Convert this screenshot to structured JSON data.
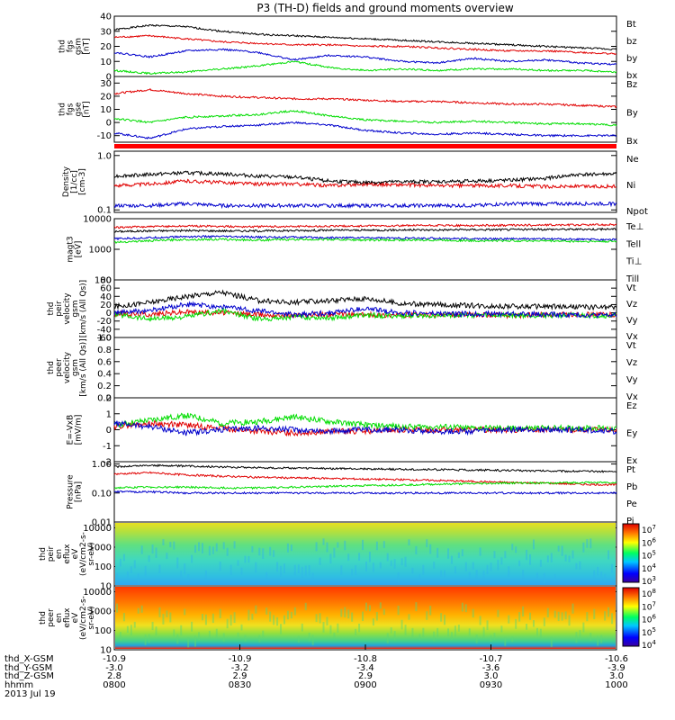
{
  "title": "P3 (TH-D) fields and ground moments overview",
  "colors": {
    "black": "#000000",
    "red": "#e00000",
    "green": "#00dd00",
    "blue": "#0000cc"
  },
  "chart_data": [
    {
      "type": "line",
      "panel": "fgs_gse",
      "ylabel": [
        "thd",
        "fgs",
        "gsm",
        "[nT]"
      ],
      "yticks": [
        "10",
        "20",
        "30",
        "40",
        "0"
      ],
      "ylim": [
        0,
        40
      ],
      "series": [
        {
          "name": "Bt",
          "color": "black",
          "values": [
            31,
            34,
            33,
            30,
            28,
            27,
            26,
            25,
            24,
            23,
            22,
            21,
            20,
            19,
            18
          ]
        },
        {
          "name": "bz",
          "color": "red",
          "values": [
            26,
            27,
            25,
            23,
            22,
            21,
            21,
            20,
            20,
            19,
            18,
            17,
            17,
            16,
            15
          ]
        },
        {
          "name": "by",
          "color": "green",
          "values": [
            4,
            2,
            3,
            5,
            7,
            10,
            6,
            4,
            5,
            4,
            5,
            5,
            4,
            4,
            3
          ]
        },
        {
          "name": "bx",
          "color": "blue",
          "values": [
            16,
            13,
            17,
            18,
            16,
            11,
            14,
            13,
            10,
            9,
            12,
            10,
            11,
            9,
            8
          ]
        }
      ]
    },
    {
      "type": "line",
      "panel": "fgs_gse2",
      "ylabel": [
        "thd",
        "fgs",
        "gse",
        "[nT]"
      ],
      "yticks": [
        "30",
        "20",
        "10",
        "0",
        "-10"
      ],
      "ylim": [
        -15,
        35
      ],
      "series": [
        {
          "name": "Bz",
          "color": "red",
          "values": [
            22,
            25,
            22,
            20,
            19,
            18,
            18,
            17,
            16,
            16,
            15,
            14,
            14,
            13,
            12
          ]
        },
        {
          "name": "By",
          "color": "green",
          "values": [
            3,
            0,
            4,
            5,
            6,
            9,
            5,
            2,
            1,
            0,
            1,
            0,
            -1,
            -1,
            -2
          ]
        },
        {
          "name": "Bx",
          "color": "blue",
          "values": [
            -8,
            -12,
            -5,
            -3,
            -2,
            0,
            -2,
            -6,
            -8,
            -9,
            -8,
            -9,
            -10,
            -10,
            -10
          ]
        }
      ]
    },
    {
      "type": "line",
      "panel": "density",
      "ylabel": [
        "Density",
        "[1/cc]",
        "[cm-3]"
      ],
      "yticks": [
        "1.0",
        "0.1"
      ],
      "ylim": [
        0.09,
        1.2
      ],
      "scale": "log",
      "series": [
        {
          "name": "Ne",
          "color": "red",
          "values": [
            0.28,
            0.3,
            0.34,
            0.32,
            0.3,
            0.3,
            0.28,
            0.3,
            0.29,
            0.28,
            0.28,
            0.28,
            0.27,
            0.27,
            0.27
          ]
        },
        {
          "name": "Ni",
          "color": "black",
          "values": [
            0.42,
            0.45,
            0.48,
            0.46,
            0.42,
            0.4,
            0.34,
            0.32,
            0.33,
            0.33,
            0.34,
            0.35,
            0.38,
            0.45,
            0.46
          ]
        },
        {
          "name": "Npot",
          "color": "blue",
          "values": [
            0.12,
            0.12,
            0.13,
            0.12,
            0.12,
            0.12,
            0.12,
            0.12,
            0.12,
            0.12,
            0.12,
            0.13,
            0.13,
            0.13,
            0.13
          ]
        }
      ]
    },
    {
      "type": "line",
      "panel": "temperature",
      "ylabel": [
        "magt3",
        "[eV]"
      ],
      "yticks": [
        "10000",
        "1000",
        "100"
      ],
      "ylim": [
        100,
        10000
      ],
      "scale": "log",
      "series": [
        {
          "name": "Te⊥",
          "color": "red",
          "values": [
            5200,
            5500,
            5800,
            5600,
            5500,
            5600,
            5700,
            5800,
            5900,
            6000,
            6000,
            6100,
            6200,
            6300,
            6400
          ]
        },
        {
          "name": "Tell",
          "color": "black",
          "values": [
            3800,
            4000,
            4100,
            4000,
            4000,
            4100,
            4200,
            4200,
            4300,
            4300,
            4400,
            4400,
            4500,
            4500,
            4600
          ]
        },
        {
          "name": "Ti⊥",
          "color": "blue",
          "values": [
            2200,
            2400,
            2600,
            2600,
            2500,
            2500,
            2400,
            2400,
            2300,
            2300,
            2200,
            2200,
            2200,
            2100,
            2100
          ]
        },
        {
          "name": "Till",
          "color": "green",
          "values": [
            1700,
            1900,
            2100,
            2100,
            2000,
            2100,
            2100,
            2000,
            2000,
            2000,
            1900,
            1900,
            1900,
            1800,
            1800
          ]
        }
      ]
    },
    {
      "type": "line",
      "panel": "peir_velocity",
      "ylabel": [
        "thd",
        "peir",
        "velocity",
        "gsm",
        "[km/s (All Qs)]"
      ],
      "yticks": [
        "80",
        "60",
        "40",
        "20",
        "0",
        "-20",
        "-40",
        "-60"
      ],
      "ylim": [
        -60,
        80
      ],
      "series": [
        {
          "name": "Vt",
          "color": "black",
          "values": [
            15,
            25,
            40,
            50,
            30,
            25,
            30,
            35,
            22,
            20,
            18,
            16,
            15,
            14,
            13
          ]
        },
        {
          "name": "Vz",
          "color": "red",
          "values": [
            -2,
            -4,
            2,
            0,
            -5,
            -6,
            -4,
            -5,
            -6,
            -5,
            -5,
            -6,
            -5,
            -4,
            -4
          ]
        },
        {
          "name": "Vy",
          "color": "green",
          "values": [
            -3,
            -15,
            -10,
            5,
            -15,
            -10,
            -12,
            -6,
            -8,
            -6,
            -5,
            -6,
            -6,
            -6,
            -7
          ]
        },
        {
          "name": "Vx",
          "color": "blue",
          "values": [
            0,
            5,
            20,
            15,
            5,
            -5,
            0,
            10,
            0,
            -2,
            -3,
            -2,
            -4,
            -5,
            -6
          ]
        }
      ]
    },
    {
      "type": "line",
      "panel": "peer_velocity",
      "ylabel": [
        "thd",
        "peer",
        "velocity",
        "gsm",
        "[km/s (All Qs)]"
      ],
      "yticks": [
        "1.0",
        "0.8",
        "0.6",
        "0.4",
        "0.2",
        "0.0"
      ],
      "ylim": [
        0,
        1
      ],
      "series": [
        {
          "name": "Vt",
          "color": "black",
          "values": []
        },
        {
          "name": "Vz",
          "color": "red",
          "values": []
        },
        {
          "name": "Vy",
          "color": "green",
          "values": []
        },
        {
          "name": "Vx",
          "color": "blue",
          "values": []
        }
      ]
    },
    {
      "type": "line",
      "panel": "efield",
      "ylabel": [
        "E=-VxB",
        "[mV/m]"
      ],
      "yticks": [
        "2",
        "1",
        "0",
        "-1",
        "-2"
      ],
      "ylim": [
        -2,
        2
      ],
      "series": [
        {
          "name": "Ez",
          "color": "red",
          "values": [
            0.2,
            0.4,
            0.3,
            0.1,
            -0.1,
            -0.2,
            -0.1,
            -0.1,
            0.0,
            0.0,
            0.0,
            0.0,
            0.0,
            0.0,
            0.0
          ]
        },
        {
          "name": "Ey",
          "color": "green",
          "values": [
            0.3,
            0.6,
            0.9,
            0.4,
            0.5,
            0.8,
            0.5,
            0.3,
            0.2,
            0.2,
            0.1,
            0.1,
            0.1,
            0.1,
            0.1
          ]
        },
        {
          "name": "Ex",
          "color": "blue",
          "values": [
            0.4,
            0.2,
            -0.2,
            0.0,
            0.1,
            0.0,
            -0.1,
            0.0,
            0.0,
            -0.1,
            -0.1,
            0.0,
            0.0,
            0.0,
            -0.1
          ]
        }
      ]
    },
    {
      "type": "line",
      "panel": "pressure",
      "ylabel": [
        "Pressure",
        "[nPa]"
      ],
      "yticks": [
        "1.00",
        "0.10",
        "0.01"
      ],
      "ylim": [
        0.01,
        1.2
      ],
      "scale": "log",
      "series": [
        {
          "name": "Pt",
          "color": "black",
          "values": [
            0.8,
            0.9,
            0.85,
            0.8,
            0.75,
            0.72,
            0.7,
            0.68,
            0.66,
            0.64,
            0.62,
            0.6,
            0.58,
            0.56,
            0.55
          ]
        },
        {
          "name": "Pb",
          "color": "red",
          "values": [
            0.45,
            0.5,
            0.42,
            0.38,
            0.35,
            0.33,
            0.32,
            0.3,
            0.29,
            0.27,
            0.25,
            0.23,
            0.22,
            0.2,
            0.19
          ]
        },
        {
          "name": "Pe",
          "color": "green",
          "values": [
            0.15,
            0.16,
            0.16,
            0.15,
            0.15,
            0.16,
            0.17,
            0.18,
            0.19,
            0.2,
            0.21,
            0.22,
            0.22,
            0.23,
            0.23
          ]
        },
        {
          "name": "Pi",
          "color": "blue",
          "values": [
            0.11,
            0.11,
            0.1,
            0.1,
            0.1,
            0.1,
            0.1,
            0.1,
            0.1,
            0.1,
            0.1,
            0.1,
            0.1,
            0.1,
            0.1
          ]
        }
      ]
    },
    {
      "type": "heatmap",
      "panel": "peir_spectrogram",
      "ylabel": [
        "thd",
        "peir",
        "en",
        "eflux",
        "eV",
        "(eV/cm2-s-",
        "sr-eV)"
      ],
      "yticks": [
        "10000",
        "1000",
        "100",
        "10"
      ],
      "ylim": [
        10,
        20000
      ],
      "scale": "log",
      "colorbar": [
        "10^7",
        "10^6",
        "10^5",
        "10^4",
        "10^3"
      ]
    },
    {
      "type": "heatmap",
      "panel": "peer_spectrogram",
      "ylabel": [
        "thd",
        "peer",
        "en",
        "eflux",
        "eV",
        "(eV/cm2-s-",
        "sr-eV)"
      ],
      "yticks": [
        "10000",
        "1000",
        "100",
        "10"
      ],
      "ylim": [
        10,
        20000
      ],
      "scale": "log",
      "colorbar": [
        "10^8",
        "10^7",
        "10^6",
        "10^5",
        "10^4"
      ]
    }
  ],
  "xaxis": {
    "row_labels": [
      "thd_X-GSM",
      "thd_Y-GSM",
      "thd_Z-GSM",
      "hhmm",
      "2013 Jul 19"
    ],
    "ticks": [
      {
        "x": "-10.9",
        "y": "-3.0",
        "z": "2.8",
        "t": "0800"
      },
      {
        "x": "-10.9",
        "y": "-3.2",
        "z": "2.9",
        "t": "0830"
      },
      {
        "x": "-10.8",
        "y": "-3.4",
        "z": "2.9",
        "t": "0900"
      },
      {
        "x": "-10.7",
        "y": "-3.6",
        "z": "3.0",
        "t": "0930"
      },
      {
        "x": "-10.6",
        "y": "-3.9",
        "z": "3.0",
        "t": "1000"
      }
    ]
  }
}
